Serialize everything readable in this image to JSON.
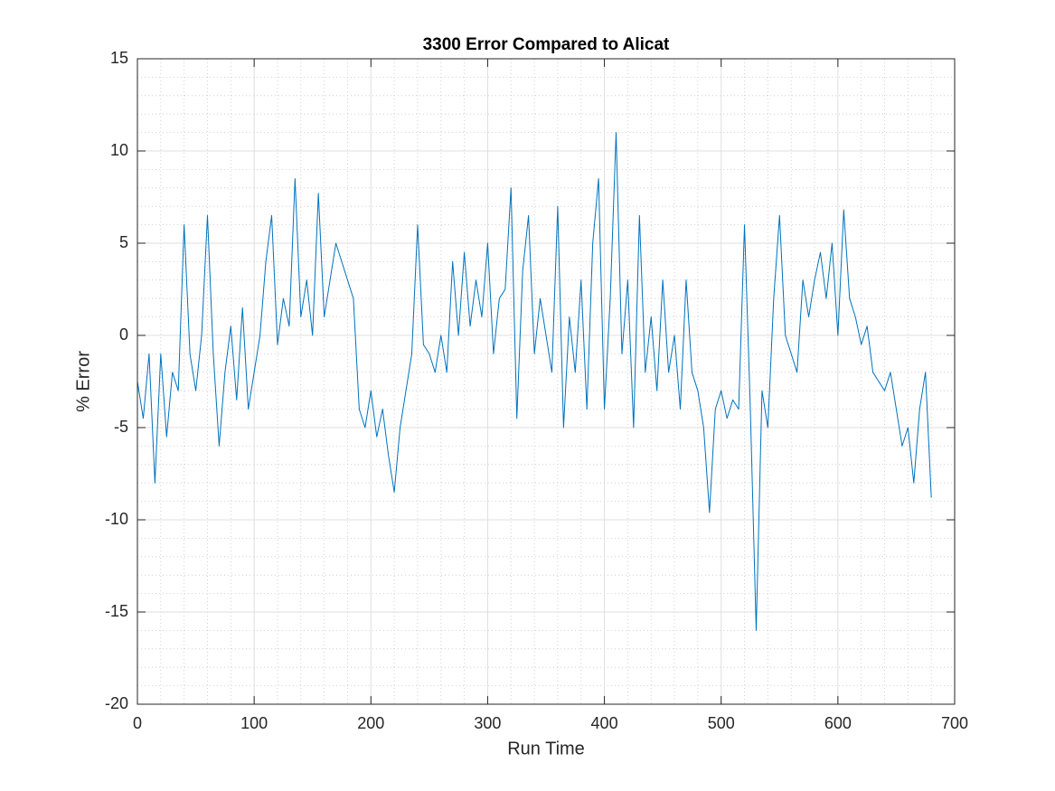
{
  "chart_data": {
    "type": "line",
    "title": "3300 Error Compared to Alicat",
    "xlabel": "Run Time",
    "ylabel": "% Error",
    "x": [
      0,
      5,
      10,
      15,
      20,
      25,
      30,
      35,
      40,
      45,
      50,
      55,
      60,
      65,
      70,
      75,
      80,
      85,
      90,
      95,
      100,
      105,
      110,
      115,
      120,
      125,
      130,
      135,
      140,
      145,
      150,
      155,
      160,
      165,
      170,
      175,
      180,
      185,
      190,
      195,
      200,
      205,
      210,
      215,
      220,
      225,
      230,
      235,
      240,
      245,
      250,
      255,
      260,
      265,
      270,
      275,
      280,
      285,
      290,
      295,
      300,
      305,
      310,
      315,
      320,
      325,
      330,
      335,
      340,
      345,
      350,
      355,
      360,
      365,
      370,
      375,
      380,
      385,
      390,
      395,
      400,
      405,
      410,
      415,
      420,
      425,
      430,
      435,
      440,
      445,
      450,
      455,
      460,
      465,
      470,
      475,
      480,
      485,
      490,
      495,
      500,
      505,
      510,
      515,
      520,
      525,
      530,
      535,
      540,
      545,
      550,
      555,
      560,
      565,
      570,
      575,
      580,
      585,
      590,
      595,
      600,
      605,
      610,
      615,
      620,
      625,
      630,
      635,
      640,
      645,
      650,
      655,
      660,
      665,
      670,
      675,
      680
    ],
    "series": [
      {
        "name": "% Error",
        "color": "#0072bd",
        "values": [
          -2.5,
          -4.5,
          -1,
          -8,
          -1,
          -5.5,
          -2,
          -3,
          6,
          -1,
          -3,
          0,
          6.5,
          -1,
          -6,
          -2,
          0.5,
          -3.5,
          1.5,
          -4,
          -2,
          0,
          4,
          6.5,
          -0.5,
          2,
          0.5,
          8.5,
          1,
          3,
          0,
          7.7,
          1,
          3,
          5,
          4,
          3,
          2,
          -4,
          -5,
          -3,
          -5.5,
          -4,
          -6.5,
          -8.5,
          -5,
          -3,
          -1,
          6,
          -0.5,
          -1,
          -2,
          0,
          -2,
          4,
          0,
          4.5,
          0.5,
          3,
          1,
          5,
          -1,
          2,
          2.5,
          8,
          -4.5,
          3.5,
          6.5,
          -1,
          2,
          0,
          -2,
          7,
          -5,
          1,
          -2,
          3,
          -4,
          5,
          8.5,
          -4,
          2,
          11,
          -1,
          3,
          -5,
          6.5,
          -2,
          1,
          -3,
          3,
          -2,
          0,
          -4,
          3,
          -2,
          -3,
          -5,
          -9.6,
          -4,
          -3,
          -4.5,
          -3.5,
          -4,
          6,
          -4,
          -16,
          -3,
          -5,
          2,
          6.5,
          0,
          -1,
          -2,
          3,
          1,
          3,
          4.5,
          2,
          5,
          0,
          6.8,
          2,
          1,
          -0.5,
          0.5,
          -2,
          -2.5,
          -3,
          -2,
          -4,
          -6,
          -5,
          -8,
          -4,
          -2,
          -8.8
        ]
      }
    ],
    "xlim": [
      0,
      700
    ],
    "xticks": [
      0,
      100,
      200,
      300,
      400,
      500,
      600,
      700
    ],
    "ylim": [
      -20,
      15
    ],
    "yticks": [
      -20,
      -15,
      -10,
      -5,
      0,
      5,
      10,
      15
    ],
    "grid": true,
    "minor_grid": true
  }
}
